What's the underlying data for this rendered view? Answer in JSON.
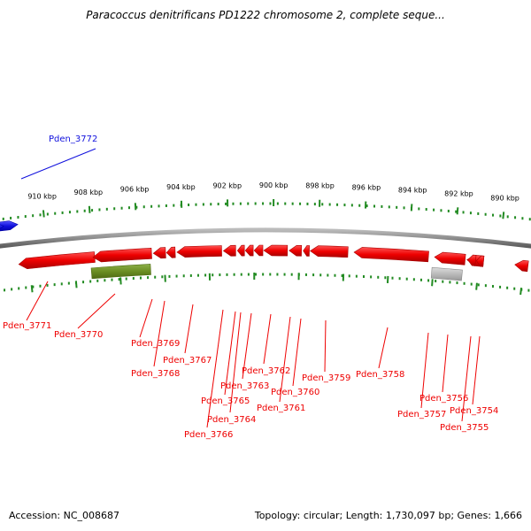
{
  "title": "Paracoccus denitrificans PD1222 chromosome 2, complete seque...",
  "footer": {
    "accession_label": "Accession:",
    "accession_value": "NC_008687",
    "topology_text": "Topology: circular; Length: 1,730,097 bp; Genes: 1,666"
  },
  "colors": {
    "forward_gene": "#1111dd",
    "reverse_gene": "#ee0000",
    "rna_gene": "#6b8e23",
    "pseudo_gene": "#bbbbbb",
    "backbone": "#888888",
    "ticks": "#228b22"
  },
  "scale_labels": [
    "910 kbp",
    "908 kbp",
    "906 kbp",
    "904 kbp",
    "902 kbp",
    "900 kbp",
    "898 kbp",
    "896 kbp",
    "894 kbp",
    "892 kbp",
    "890 kbp"
  ],
  "genes": [
    {
      "id": "Pden_3772",
      "strand": "forward",
      "kind": "cds"
    },
    {
      "id": "Pden_3771",
      "strand": "reverse",
      "kind": "cds"
    },
    {
      "id": "Pden_3770",
      "strand": "reverse",
      "kind": "cds"
    },
    {
      "id": "Pden_3769",
      "strand": "reverse",
      "kind": "rna"
    },
    {
      "id": "Pden_3768",
      "strand": "reverse",
      "kind": "cds"
    },
    {
      "id": "Pden_3767",
      "strand": "reverse",
      "kind": "cds"
    },
    {
      "id": "Pden_3766",
      "strand": "reverse",
      "kind": "cds"
    },
    {
      "id": "Pden_3765",
      "strand": "reverse",
      "kind": "cds"
    },
    {
      "id": "Pden_3764",
      "strand": "reverse",
      "kind": "cds"
    },
    {
      "id": "Pden_3763",
      "strand": "reverse",
      "kind": "cds"
    },
    {
      "id": "Pden_3762",
      "strand": "reverse",
      "kind": "cds"
    },
    {
      "id": "Pden_3761",
      "strand": "reverse",
      "kind": "cds"
    },
    {
      "id": "Pden_3760",
      "strand": "reverse",
      "kind": "cds"
    },
    {
      "id": "Pden_3759",
      "strand": "reverse",
      "kind": "cds"
    },
    {
      "id": "Pden_3758",
      "strand": "reverse",
      "kind": "cds"
    },
    {
      "id": "Pden_3757",
      "strand": "reverse",
      "kind": "cds"
    },
    {
      "id": "Pden_3756",
      "strand": "reverse",
      "kind": "pseudo"
    },
    {
      "id": "Pden_3755",
      "strand": "reverse",
      "kind": "cds"
    },
    {
      "id": "Pden_3754",
      "strand": "reverse",
      "kind": "cds"
    }
  ]
}
